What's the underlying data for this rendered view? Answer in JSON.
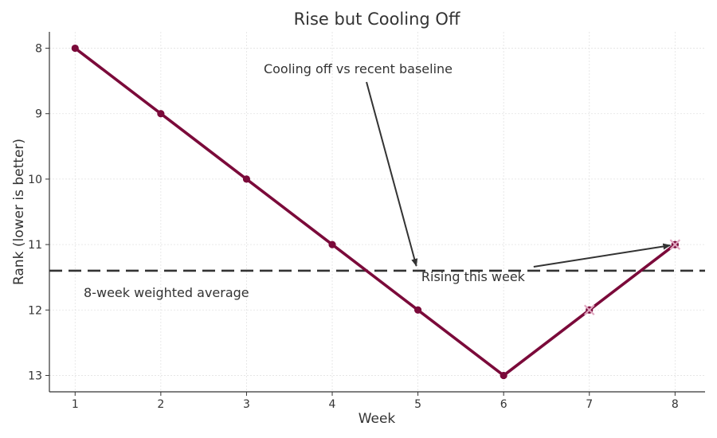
{
  "chart_data": {
    "type": "line",
    "title": "Rise but Cooling Off",
    "xlabel": "Week",
    "ylabel": "Rank (lower is better)",
    "y_inverted": true,
    "xlim": [
      0.7,
      8.35
    ],
    "ylim": [
      7.75,
      13.25
    ],
    "xticks": [
      1,
      2,
      3,
      4,
      5,
      6,
      7,
      8
    ],
    "yticks": [
      8,
      9,
      10,
      11,
      12,
      13
    ],
    "grid": true,
    "series": [
      {
        "name": "Rank",
        "color": "#7b0a3a",
        "x": [
          1,
          2,
          3,
          4,
          5,
          6,
          7,
          8
        ],
        "y": [
          8,
          9,
          10,
          11,
          12,
          13,
          12,
          11
        ]
      }
    ],
    "highlight_points": [
      {
        "x": 7,
        "y": 12,
        "marker": "x",
        "color": "#e0a6c0"
      },
      {
        "x": 8,
        "y": 11,
        "marker": "x",
        "color": "#e0a6c0"
      }
    ],
    "reference_line": {
      "y": 11.4,
      "label": "8-week weighted average",
      "style": "dashed",
      "color": "#333333"
    },
    "annotations": [
      {
        "text": "Cooling off vs recent baseline",
        "x": 5,
        "y": 11.4
      },
      {
        "text": "Rising this week",
        "x": 8,
        "y": 11
      }
    ]
  }
}
